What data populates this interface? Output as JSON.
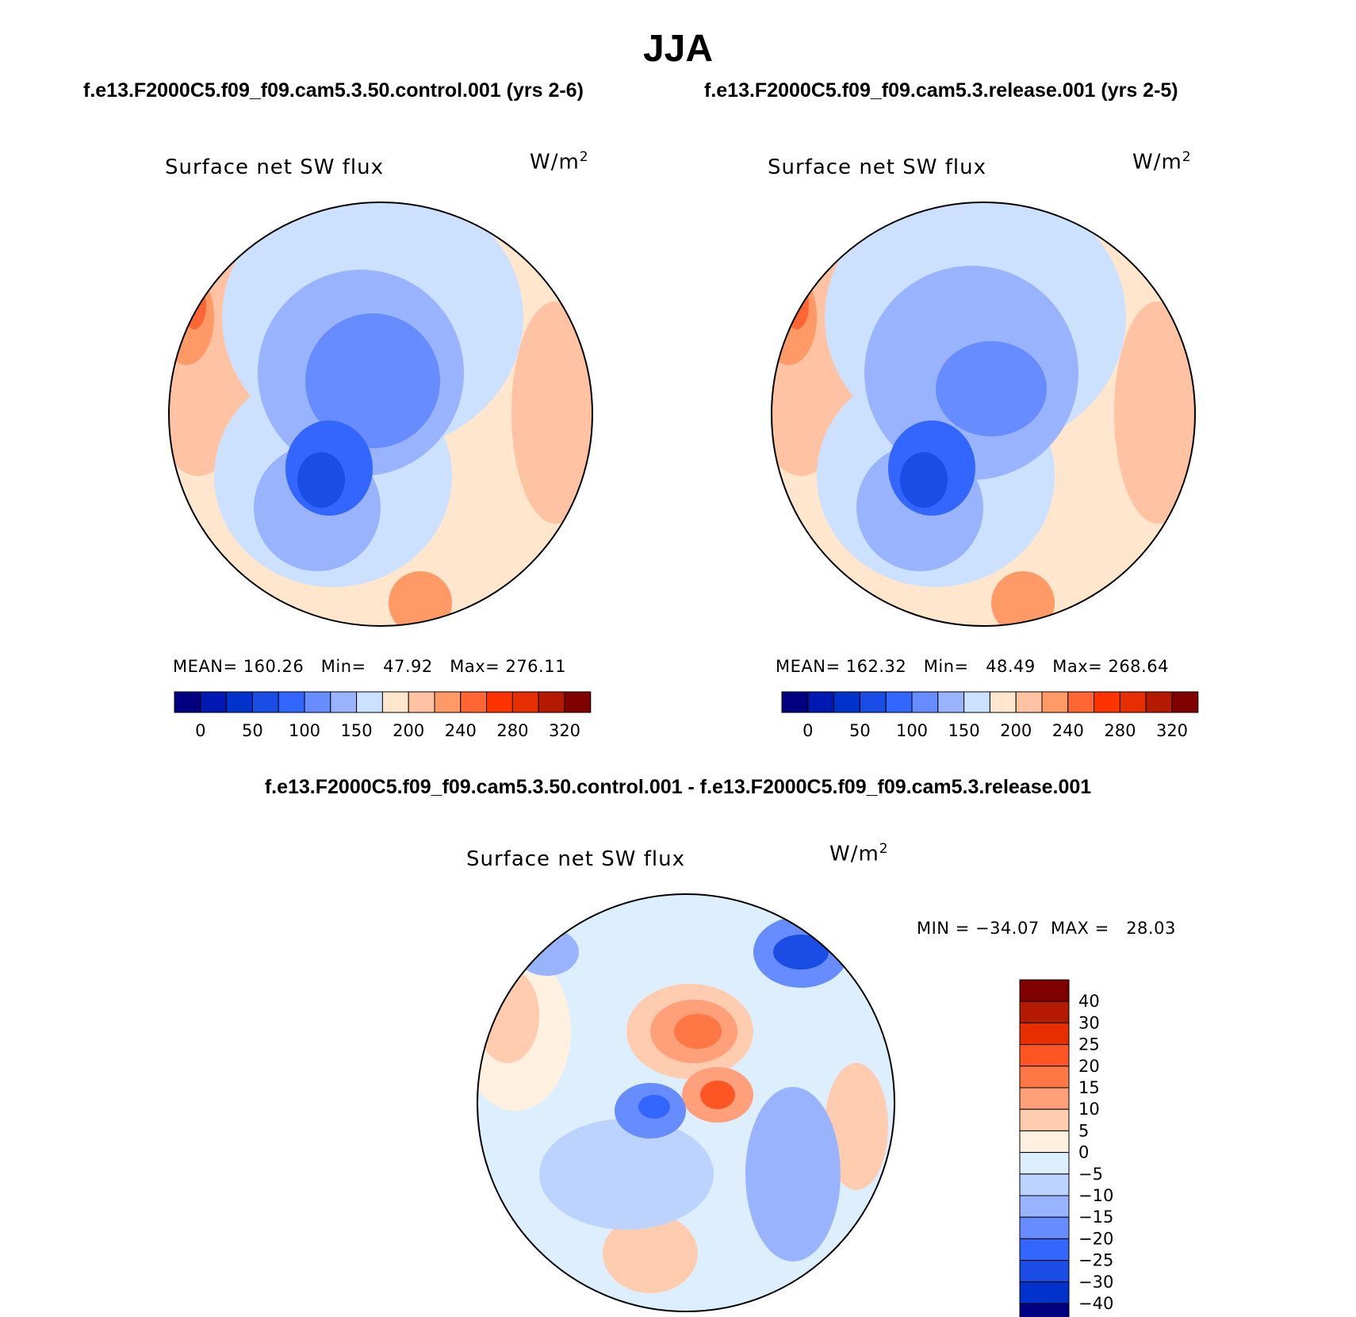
{
  "title": "JJA",
  "panels": [
    {
      "id": "control",
      "case_title": "f.e13.F2000C5.f09_f09.cam5.3.50.control.001 (yrs 2-6)",
      "var_title": "Surface net SW flux",
      "units": "W/m",
      "units_sup": "2",
      "stats": "MEAN= 160.26   Min=   47.92   Max= 276.11"
    },
    {
      "id": "release",
      "case_title": "f.e13.F2000C5.f09_f09.cam5.3.release.001 (yrs 2-5)",
      "var_title": "Surface net SW flux",
      "units": "W/m",
      "units_sup": "2",
      "stats": "MEAN= 162.32   Min=   48.49   Max= 268.64"
    },
    {
      "id": "difference",
      "case_title": "f.e13.F2000C5.f09_f09.cam5.3.50.control.001 - f.e13.F2000C5.f09_f09.cam5.3.release.001",
      "var_title": "Surface net SW flux",
      "units": "W/m",
      "units_sup": "2",
      "stats": "MIN = −34.07  MAX =   28.03"
    }
  ],
  "colorbar_abs": {
    "colors": [
      "#000080",
      "#0019b3",
      "#0033cc",
      "#1a4de6",
      "#3366ff",
      "#668cff",
      "#99b3ff",
      "#cce0ff",
      "#ffe6cc",
      "#ffc2a3",
      "#ff9966",
      "#ff6633",
      "#ff3300",
      "#e62e00",
      "#b31a00",
      "#800000"
    ],
    "labels": [
      "0",
      "50",
      "100",
      "150",
      "200",
      "240",
      "280",
      "320"
    ]
  },
  "colorbar_diff": {
    "colors": [
      "#800000",
      "#b31a00",
      "#e62e00",
      "#ff5522",
      "#ff7744",
      "#ffa07a",
      "#ffccb0",
      "#fff0e0",
      "#ddeeff",
      "#bdd3ff",
      "#99b3ff",
      "#668cff",
      "#3366ff",
      "#1a4de6",
      "#0033cc",
      "#000080"
    ],
    "labels": [
      "40",
      "30",
      "25",
      "20",
      "15",
      "10",
      "5",
      "0",
      "−5",
      "−10",
      "−15",
      "−20",
      "−25",
      "−30",
      "−40"
    ]
  }
}
